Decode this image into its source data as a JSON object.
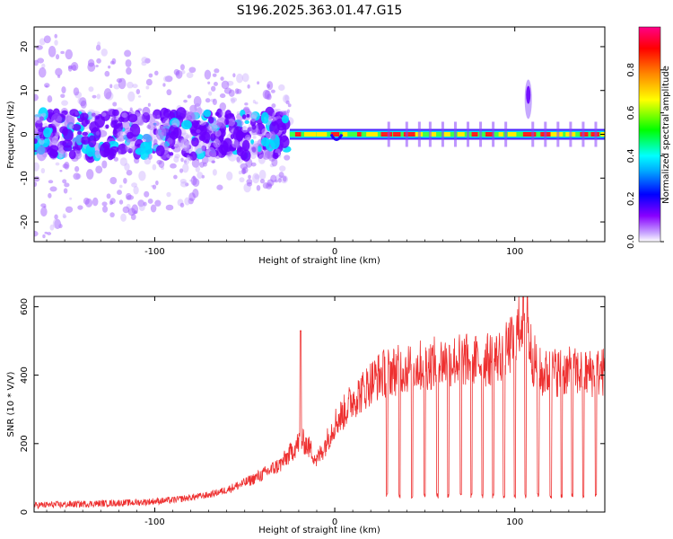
{
  "figure_title": "S196.2025.363.01.47.G15",
  "chart_data": [
    {
      "type": "heatmap",
      "name": "spectrogram",
      "title": "S196.2025.363.01.47.G15",
      "xlabel": "Height of straight line (km)",
      "ylabel": "Frequency (Hz)",
      "xlim": [
        -167,
        150
      ],
      "ylim": [
        -24.5,
        24.5
      ],
      "xticks": [
        -100,
        0,
        100
      ],
      "yticks": [
        -20,
        -10,
        0,
        10,
        20
      ],
      "xtick_labels": [
        "-100",
        "0",
        "100"
      ],
      "ytick_labels": [
        "-20",
        "-10",
        "0",
        "10",
        "20"
      ],
      "colorbar": {
        "label": "Normalized spectral amplitude",
        "range": [
          0,
          1
        ],
        "ticks": [
          0.0,
          0.2,
          0.4,
          0.6,
          0.8
        ],
        "tick_labels": [
          "0.0",
          "0.2",
          "0.4",
          "0.6",
          "0.8"
        ],
        "colors": [
          "#ffffff",
          "#8800ff",
          "#0000ff",
          "#00ffff",
          "#00ff00",
          "#ffff00",
          "#ff8800",
          "#ff0000",
          "#ff0088"
        ]
      },
      "features": [
        {
          "description": "noisy scattered energy",
          "x_range": [
            -167,
            -25
          ],
          "freq_range": [
            -24,
            24
          ]
        },
        {
          "description": "strong carrier line near 0 Hz",
          "x_range": [
            -25,
            150
          ],
          "freq": 0
        },
        {
          "description": "high-frequency burst",
          "x_range": [
            105,
            110
          ],
          "freq_range": [
            3,
            15
          ]
        }
      ]
    },
    {
      "type": "line",
      "name": "snr",
      "xlabel": "Height of straight line (km)",
      "ylabel": "SNR (10 * V/V)",
      "xlim": [
        -167,
        150
      ],
      "ylim": [
        0,
        630
      ],
      "xticks": [
        -100,
        0,
        100
      ],
      "yticks": [
        0,
        200,
        400,
        600
      ],
      "xtick_labels": [
        "-100",
        "0",
        "100"
      ],
      "ytick_labels": [
        "0",
        "200",
        "400",
        "600"
      ],
      "series": [
        {
          "name": "SNR",
          "color": "#ee3030",
          "x": [
            -167,
            -150,
            -130,
            -110,
            -90,
            -70,
            -60,
            -50,
            -40,
            -30,
            -25,
            -22,
            -19,
            -16,
            -13,
            -10,
            -5,
            0,
            5,
            10,
            15,
            20,
            25,
            30,
            40,
            50,
            60,
            70,
            80,
            90,
            95,
            100,
            105,
            110,
            115,
            120,
            130,
            140,
            150
          ],
          "values": [
            20,
            22,
            25,
            28,
            35,
            50,
            65,
            85,
            110,
            140,
            170,
            190,
            210,
            200,
            180,
            150,
            200,
            260,
            290,
            330,
            350,
            380,
            400,
            410,
            420,
            430,
            440,
            445,
            440,
            450,
            470,
            500,
            590,
            450,
            400,
            410,
            410,
            405,
            410
          ],
          "dropouts": {
            "description": "periodic dips of the SNR toward ~40",
            "x": [
              29,
              36,
              43,
              50,
              57,
              63,
              70,
              76,
              82,
              88,
              94,
              100,
              106,
              113,
              120,
              126,
              132,
              138,
              145
            ],
            "value": 40
          }
        }
      ]
    }
  ]
}
